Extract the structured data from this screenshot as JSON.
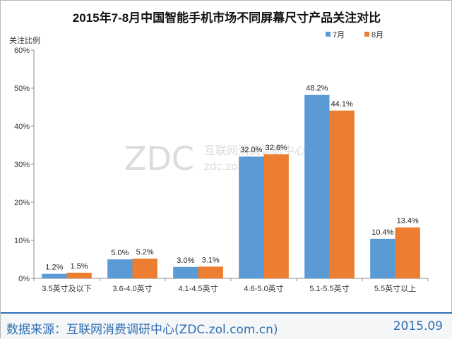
{
  "colors": {
    "july": "#5b9bd5",
    "august": "#ed7d31",
    "footer": "#2f6fb3"
  },
  "watermark": {
    "logo": "ZDC",
    "name": "互联网消费调研中心",
    "url": "zdc.zol.com.cn"
  },
  "footer": {
    "source": "数据来源：互联网消费调研中心(ZDC.zol.com.cn)",
    "date": "2015.09"
  },
  "chart_data": {
    "type": "bar",
    "title": "2015年7-8月中国智能手机市场不同屏幕尺寸产品关注对比",
    "ylabel": "关注比例",
    "xlabel": "",
    "categories": [
      "3.5英寸及以下",
      "3.6-4.0英寸",
      "4.1-4.5英寸",
      "4.6-5.0英寸",
      "5.1-5.5英寸",
      "5.5英寸以上"
    ],
    "series": [
      {
        "name": "7月",
        "values": [
          1.2,
          5.0,
          3.0,
          32.0,
          48.2,
          10.4
        ],
        "labels": [
          "1.2%",
          "5.0%",
          "3.0%",
          "32.0%",
          "48.2%",
          "10.4%"
        ]
      },
      {
        "name": "8月",
        "values": [
          1.5,
          5.2,
          3.1,
          32.6,
          44.1,
          13.4
        ],
        "labels": [
          "1.5%",
          "5.2%",
          "3.1%",
          "32.6%",
          "44.1%",
          "13.4%"
        ]
      }
    ],
    "ylim": [
      0,
      60
    ],
    "yticks": [
      "0%",
      "10%",
      "20%",
      "30%",
      "40%",
      "50%",
      "60%"
    ],
    "grid": false,
    "legend_position": "top-right"
  }
}
